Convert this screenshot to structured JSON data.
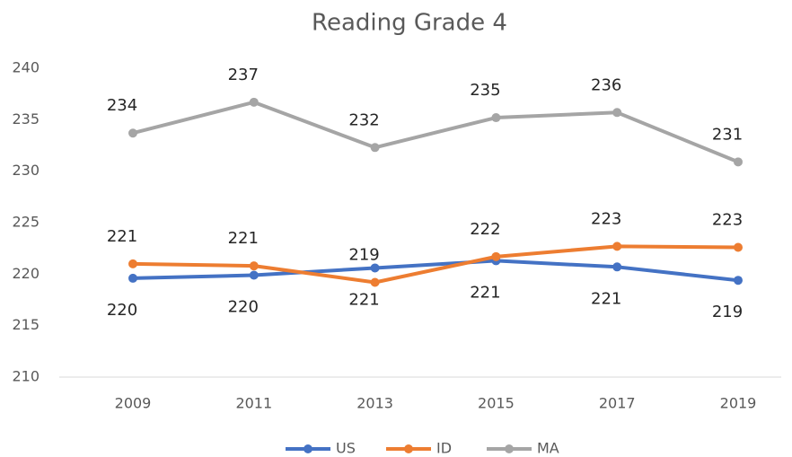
{
  "chart_data": {
    "type": "line",
    "title": "Reading Grade 4",
    "categories": [
      "2009",
      "2011",
      "2013",
      "2015",
      "2017",
      "2019"
    ],
    "series": [
      {
        "name": "US",
        "color": "#4472c4",
        "values": [
          219.6,
          219.9,
          220.6,
          221.3,
          220.7,
          219.4
        ],
        "value_labels": [
          "220",
          "220",
          "221",
          "221",
          "221",
          "219"
        ]
      },
      {
        "name": "ID",
        "color": "#ed7d31",
        "values": [
          221.0,
          220.8,
          219.2,
          221.7,
          222.7,
          222.6
        ],
        "value_labels": [
          "221",
          "221",
          "219",
          "222",
          "223",
          "223"
        ]
      },
      {
        "name": "MA",
        "color": "#a5a5a5",
        "values": [
          233.7,
          236.7,
          232.3,
          235.2,
          235.7,
          230.9
        ],
        "value_labels": [
          "234",
          "237",
          "232",
          "235",
          "236",
          "231"
        ]
      }
    ],
    "ylim": [
      210,
      240
    ],
    "yticks": [
      210,
      215,
      220,
      225,
      230,
      235,
      240
    ],
    "grid": false,
    "legend": "bottom"
  }
}
